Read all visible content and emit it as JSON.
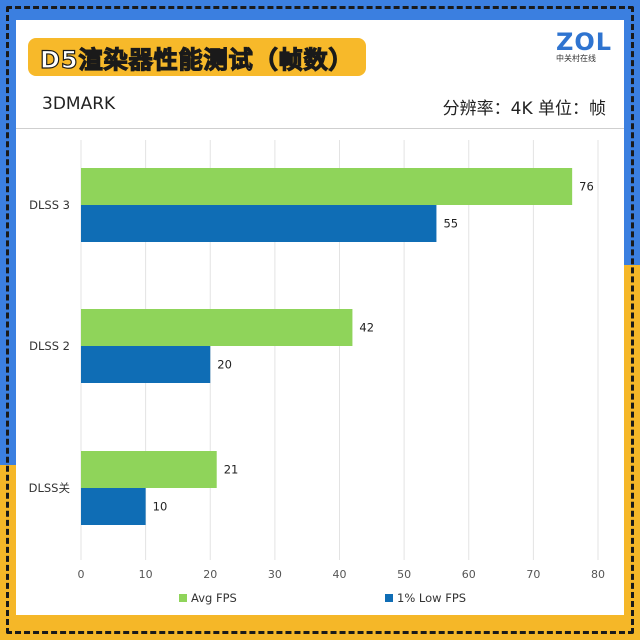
{
  "header": {
    "title": "D5渲染器性能测试（帧数）",
    "subtitle_left": "3DMARK",
    "subtitle_right": "分辨率：4K   单位：帧"
  },
  "logo": {
    "main": "ZOL",
    "sub": "中关村在线"
  },
  "colors": {
    "avg": "#8fd45a",
    "low": "#0f6db5",
    "frame_blue": "#3b7fe0",
    "frame_yellow": "#f5b728",
    "title_bg": "#f7b92a"
  },
  "chart_data": {
    "type": "bar",
    "orientation": "horizontal",
    "categories": [
      "DLSS 3",
      "DLSS 2",
      "DLSS关"
    ],
    "series": [
      {
        "name": "Avg FPS",
        "values": [
          76,
          42,
          21
        ]
      },
      {
        "name": "1% Low FPS",
        "values": [
          55,
          20,
          10
        ]
      }
    ],
    "xlim": [
      0,
      80
    ],
    "xticks": [
      0,
      10,
      20,
      30,
      40,
      50,
      60,
      70,
      80
    ],
    "grid": true,
    "legend": "bottom"
  }
}
